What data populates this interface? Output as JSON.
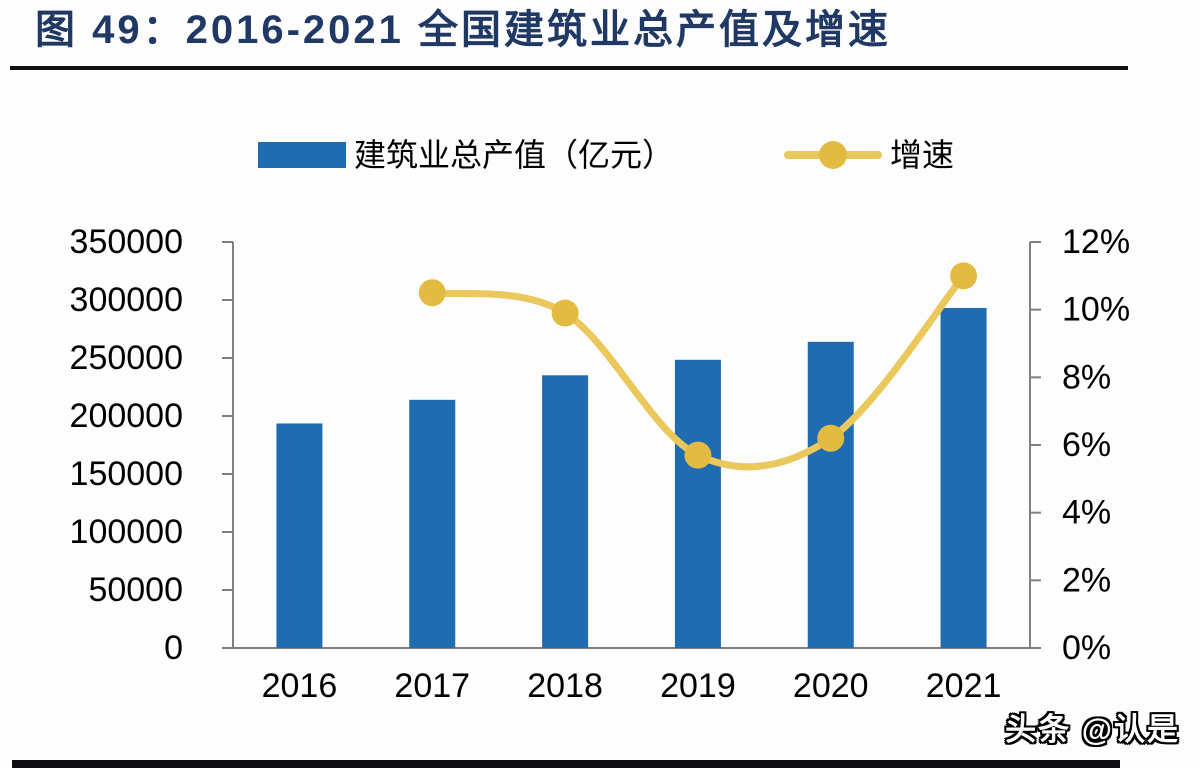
{
  "figure": {
    "title": "图 49：2016-2021 全国建筑业总产值及增速"
  },
  "legend": {
    "items": [
      {
        "label": "建筑业总产值（亿元）",
        "swatch": "bar"
      },
      {
        "label": "增速",
        "swatch": "line-with-marker"
      }
    ]
  },
  "watermark": "头条 @认是",
  "colors": {
    "title": "#1F3864",
    "bar": "#206CB0",
    "line": "#EAC85C",
    "marker": "#E3BB43",
    "axis": "#7F7F7F",
    "text": "#000000",
    "divider": "#111111"
  },
  "chart_data": {
    "type": "bar",
    "subtype": "bar-line-combo",
    "title": "图 49：2016-2021 全国建筑业总产值及增速",
    "categories": [
      "2016",
      "2017",
      "2018",
      "2019",
      "2020",
      "2021"
    ],
    "series": [
      {
        "name": "建筑业总产值（亿元）",
        "type": "bar",
        "axis": "left",
        "values": [
          193567,
          213954,
          235086,
          248446,
          263947,
          293079
        ]
      },
      {
        "name": "增速",
        "type": "line",
        "axis": "right",
        "unit": "%",
        "values": [
          null,
          10.5,
          9.9,
          5.7,
          6.2,
          11.0
        ]
      }
    ],
    "left_axis": {
      "min": 0,
      "max": 350000,
      "step": 50000,
      "tick_labels": [
        "0",
        "50000",
        "100000",
        "150000",
        "200000",
        "250000",
        "300000",
        "350000"
      ]
    },
    "right_axis": {
      "min": 0,
      "max": 12,
      "step": 2,
      "tick_labels": [
        "0%",
        "2%",
        "4%",
        "6%",
        "8%",
        "10%",
        "12%"
      ]
    },
    "grid": false,
    "legend_position": "top"
  }
}
